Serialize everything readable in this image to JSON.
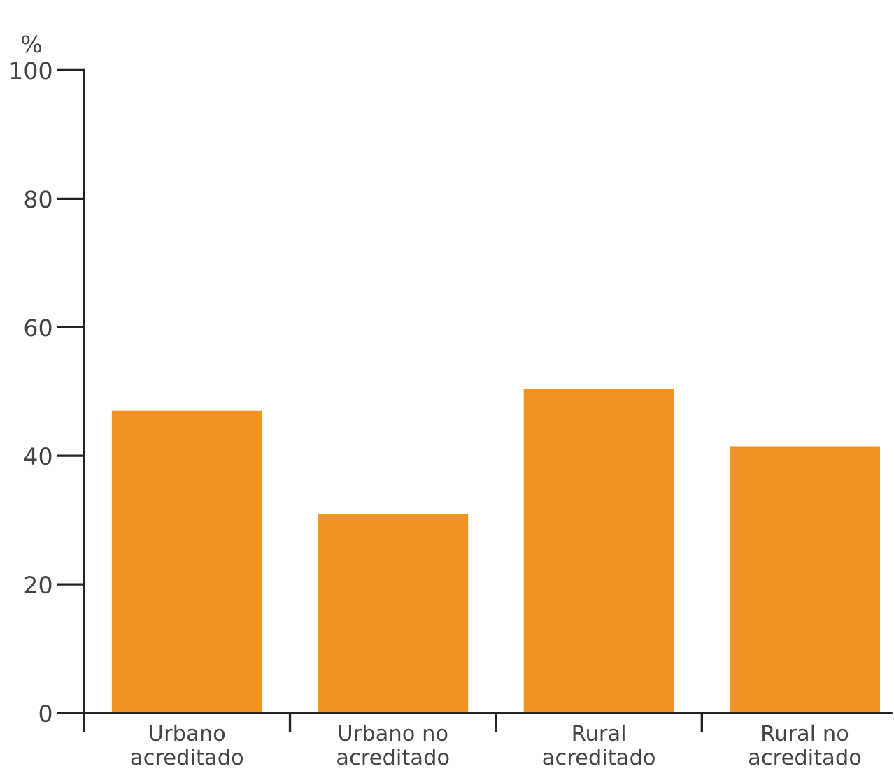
{
  "chart_data": {
    "type": "bar",
    "ylabel": "%",
    "categories": [
      "Urbano\nacreditado",
      "Urbano no\nacreditado",
      "Rural\nacreditado",
      "Rural no\nacreditado"
    ],
    "values": [
      47.0,
      31.0,
      50.4,
      41.5
    ],
    "color": "#f39220",
    "ylim": [
      0,
      100
    ],
    "yticks": [
      0,
      20,
      40,
      60,
      80,
      100
    ],
    "grid": false,
    "legend": false
  }
}
